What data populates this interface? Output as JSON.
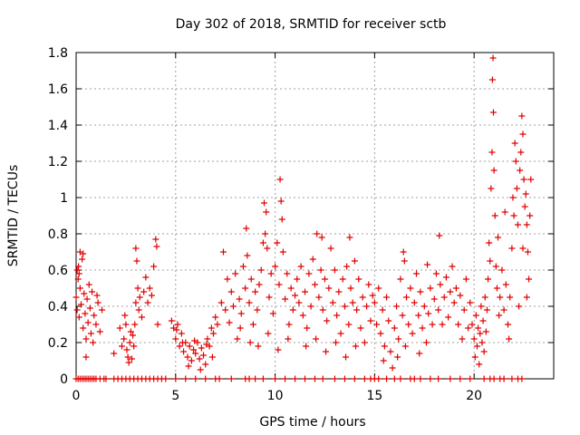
{
  "chart_data": {
    "type": "scatter",
    "title": "Day 302 of 2018, SRMTID for receiver sctb",
    "xlabel": "GPS time / hours",
    "ylabel": "SRMTID / TECUs",
    "xlim": [
      0,
      24
    ],
    "ylim": [
      0,
      1.8
    ],
    "xticks": [
      0,
      5,
      10,
      15,
      20
    ],
    "xtick_labels": [
      "0",
      "5",
      "10",
      "15",
      "20"
    ],
    "yticks": [
      0,
      0.2,
      0.4,
      0.6,
      0.8,
      1.0,
      1.2,
      1.4,
      1.6,
      1.8
    ],
    "ytick_labels": [
      "0",
      "0.2",
      "0.4",
      "0.6",
      "0.8",
      "1",
      "1.2",
      "1.4",
      "1.6",
      "1.8"
    ],
    "grid": true,
    "marker": "+",
    "color": "#e00000",
    "series": [
      {
        "name": "SRMTID",
        "points": [
          [
            0.0,
            0.45
          ],
          [
            0.05,
            0.38
          ],
          [
            0.1,
            0.55
          ],
          [
            0.12,
            0.62
          ],
          [
            0.15,
            0.34
          ],
          [
            0.2,
            0.5
          ],
          [
            0.25,
            0.41
          ],
          [
            0.3,
            0.66
          ],
          [
            0.35,
            0.28
          ],
          [
            0.4,
            0.47
          ],
          [
            0.45,
            0.36
          ],
          [
            0.5,
            0.22
          ],
          [
            0.55,
            0.44
          ],
          [
            0.6,
            0.31
          ],
          [
            0.7,
            0.39
          ],
          [
            0.75,
            0.25
          ],
          [
            0.8,
            0.48
          ],
          [
            0.9,
            0.35
          ],
          [
            1.0,
            0.3
          ],
          [
            1.1,
            0.42
          ],
          [
            1.2,
            0.26
          ],
          [
            1.3,
            0.38
          ],
          [
            0.2,
            0.7
          ],
          [
            0.35,
            0.69
          ],
          [
            0.15,
            0.58
          ],
          [
            0.5,
            0.12
          ],
          [
            0.05,
            0.6
          ],
          [
            0.65,
            0.52
          ],
          [
            0.85,
            0.2
          ],
          [
            1.05,
            0.46
          ],
          [
            1.9,
            0.14
          ],
          [
            2.2,
            0.28
          ],
          [
            2.3,
            0.18
          ],
          [
            2.4,
            0.22
          ],
          [
            2.5,
            0.3
          ],
          [
            2.55,
            0.16
          ],
          [
            2.6,
            0.12
          ],
          [
            2.7,
            0.2
          ],
          [
            2.75,
            0.26
          ],
          [
            2.8,
            0.11
          ],
          [
            2.85,
            0.24
          ],
          [
            2.9,
            0.18
          ],
          [
            2.95,
            0.3
          ],
          [
            3.0,
            0.42
          ],
          [
            3.05,
            0.65
          ],
          [
            3.1,
            0.5
          ],
          [
            3.15,
            0.38
          ],
          [
            3.2,
            0.45
          ],
          [
            3.3,
            0.34
          ],
          [
            3.4,
            0.48
          ],
          [
            3.5,
            0.56
          ],
          [
            3.6,
            0.42
          ],
          [
            3.7,
            0.5
          ],
          [
            3.8,
            0.46
          ],
          [
            3.9,
            0.62
          ],
          [
            4.0,
            0.77
          ],
          [
            4.05,
            0.73
          ],
          [
            4.1,
            0.3
          ],
          [
            3.0,
            0.72
          ],
          [
            2.45,
            0.35
          ],
          [
            2.65,
            0.09
          ],
          [
            4.8,
            0.32
          ],
          [
            4.9,
            0.28
          ],
          [
            5.0,
            0.22
          ],
          [
            5.1,
            0.3
          ],
          [
            5.2,
            0.18
          ],
          [
            5.3,
            0.25
          ],
          [
            5.4,
            0.15
          ],
          [
            5.5,
            0.2
          ],
          [
            5.6,
            0.12
          ],
          [
            5.7,
            0.18
          ],
          [
            5.8,
            0.1
          ],
          [
            5.9,
            0.16
          ],
          [
            6.0,
            0.14
          ],
          [
            6.1,
            0.2
          ],
          [
            6.2,
            0.11
          ],
          [
            6.3,
            0.17
          ],
          [
            6.4,
            0.13
          ],
          [
            6.5,
            0.08
          ],
          [
            6.6,
            0.22
          ],
          [
            6.7,
            0.18
          ],
          [
            6.8,
            0.28
          ],
          [
            6.9,
            0.25
          ],
          [
            7.0,
            0.34
          ],
          [
            7.1,
            0.3
          ],
          [
            5.05,
            0.27
          ],
          [
            5.35,
            0.2
          ],
          [
            5.65,
            0.07
          ],
          [
            5.95,
            0.21
          ],
          [
            6.25,
            0.05
          ],
          [
            6.55,
            0.19
          ],
          [
            6.85,
            0.12
          ],
          [
            7.3,
            0.42
          ],
          [
            7.4,
            0.7
          ],
          [
            7.5,
            0.38
          ],
          [
            7.6,
            0.55
          ],
          [
            7.7,
            0.31
          ],
          [
            7.8,
            0.48
          ],
          [
            7.9,
            0.4
          ],
          [
            8.0,
            0.58
          ],
          [
            8.1,
            0.22
          ],
          [
            8.2,
            0.44
          ],
          [
            8.3,
            0.36
          ],
          [
            8.4,
            0.62
          ],
          [
            8.5,
            0.5
          ],
          [
            8.55,
            0.83
          ],
          [
            8.6,
            0.68
          ],
          [
            8.7,
            0.42
          ],
          [
            8.8,
            0.55
          ],
          [
            8.9,
            0.3
          ],
          [
            9.0,
            0.48
          ],
          [
            9.1,
            0.38
          ],
          [
            9.2,
            0.52
          ],
          [
            9.3,
            0.6
          ],
          [
            9.4,
            0.75
          ],
          [
            9.45,
            0.97
          ],
          [
            9.5,
            0.8
          ],
          [
            9.55,
            0.92
          ],
          [
            9.6,
            0.72
          ],
          [
            9.7,
            0.45
          ],
          [
            9.8,
            0.58
          ],
          [
            9.9,
            0.36
          ],
          [
            10.0,
            0.62
          ],
          [
            10.1,
            0.75
          ],
          [
            10.2,
            0.52
          ],
          [
            10.25,
            1.1
          ],
          [
            10.3,
            0.98
          ],
          [
            10.35,
            0.88
          ],
          [
            10.4,
            0.7
          ],
          [
            10.5,
            0.44
          ],
          [
            10.6,
            0.58
          ],
          [
            10.7,
            0.3
          ],
          [
            10.8,
            0.5
          ],
          [
            10.9,
            0.38
          ],
          [
            11.0,
            0.46
          ],
          [
            8.25,
            0.28
          ],
          [
            8.75,
            0.2
          ],
          [
            9.15,
            0.18
          ],
          [
            9.65,
            0.25
          ],
          [
            10.15,
            0.16
          ],
          [
            10.65,
            0.22
          ],
          [
            11.1,
            0.55
          ],
          [
            11.2,
            0.42
          ],
          [
            11.3,
            0.62
          ],
          [
            11.4,
            0.35
          ],
          [
            11.5,
            0.48
          ],
          [
            11.6,
            0.28
          ],
          [
            11.7,
            0.58
          ],
          [
            11.8,
            0.4
          ],
          [
            11.9,
            0.66
          ],
          [
            12.0,
            0.52
          ],
          [
            12.1,
            0.8
          ],
          [
            12.2,
            0.45
          ],
          [
            12.3,
            0.6
          ],
          [
            12.4,
            0.38
          ],
          [
            12.5,
            0.55
          ],
          [
            12.6,
            0.32
          ],
          [
            12.7,
            0.5
          ],
          [
            12.8,
            0.72
          ],
          [
            12.9,
            0.42
          ],
          [
            13.0,
            0.6
          ],
          [
            13.1,
            0.35
          ],
          [
            13.2,
            0.48
          ],
          [
            13.3,
            0.25
          ],
          [
            13.4,
            0.55
          ],
          [
            13.5,
            0.4
          ],
          [
            13.6,
            0.62
          ],
          [
            13.7,
            0.3
          ],
          [
            13.8,
            0.5
          ],
          [
            13.9,
            0.42
          ],
          [
            14.0,
            0.65
          ],
          [
            14.1,
            0.38
          ],
          [
            14.2,
            0.55
          ],
          [
            14.3,
            0.28
          ],
          [
            14.4,
            0.45
          ],
          [
            14.5,
            0.2
          ],
          [
            14.6,
            0.4
          ],
          [
            14.7,
            0.52
          ],
          [
            14.8,
            0.32
          ],
          [
            14.9,
            0.46
          ],
          [
            11.55,
            0.18
          ],
          [
            12.05,
            0.22
          ],
          [
            12.55,
            0.15
          ],
          [
            13.05,
            0.2
          ],
          [
            13.55,
            0.12
          ],
          [
            14.05,
            0.18
          ],
          [
            13.75,
            0.78
          ],
          [
            12.35,
            0.78
          ],
          [
            15.0,
            0.42
          ],
          [
            15.1,
            0.3
          ],
          [
            15.2,
            0.5
          ],
          [
            15.3,
            0.25
          ],
          [
            15.4,
            0.38
          ],
          [
            15.5,
            0.18
          ],
          [
            15.6,
            0.45
          ],
          [
            15.7,
            0.32
          ],
          [
            15.8,
            0.15
          ],
          [
            15.9,
            0.06
          ],
          [
            16.0,
            0.28
          ],
          [
            16.1,
            0.4
          ],
          [
            16.2,
            0.22
          ],
          [
            16.3,
            0.55
          ],
          [
            16.4,
            0.35
          ],
          [
            16.5,
            0.65
          ],
          [
            16.6,
            0.45
          ],
          [
            16.7,
            0.3
          ],
          [
            16.8,
            0.5
          ],
          [
            16.9,
            0.25
          ],
          [
            17.0,
            0.42
          ],
          [
            17.1,
            0.58
          ],
          [
            17.2,
            0.35
          ],
          [
            17.3,
            0.48
          ],
          [
            17.4,
            0.28
          ],
          [
            17.5,
            0.4
          ],
          [
            17.6,
            0.2
          ],
          [
            17.7,
            0.36
          ],
          [
            17.8,
            0.5
          ],
          [
            17.9,
            0.3
          ],
          [
            18.0,
            0.44
          ],
          [
            18.1,
            0.58
          ],
          [
            18.2,
            0.38
          ],
          [
            18.3,
            0.52
          ],
          [
            18.4,
            0.3
          ],
          [
            18.5,
            0.45
          ],
          [
            18.6,
            0.56
          ],
          [
            18.7,
            0.34
          ],
          [
            18.8,
            0.48
          ],
          [
            18.9,
            0.62
          ],
          [
            19.0,
            0.42
          ],
          [
            19.1,
            0.5
          ],
          [
            19.2,
            0.3
          ],
          [
            19.3,
            0.46
          ],
          [
            19.4,
            0.22
          ],
          [
            19.5,
            0.38
          ],
          [
            19.6,
            0.55
          ],
          [
            19.7,
            0.28
          ],
          [
            19.8,
            0.42
          ],
          [
            15.45,
            0.1
          ],
          [
            16.15,
            0.12
          ],
          [
            16.55,
            0.18
          ],
          [
            17.25,
            0.14
          ],
          [
            18.25,
            0.79
          ],
          [
            17.65,
            0.63
          ],
          [
            16.45,
            0.7
          ],
          [
            19.9,
            0.3
          ],
          [
            20.0,
            0.22
          ],
          [
            20.05,
            0.12
          ],
          [
            20.1,
            0.35
          ],
          [
            20.15,
            0.18
          ],
          [
            20.2,
            0.28
          ],
          [
            20.25,
            0.08
          ],
          [
            20.3,
            0.25
          ],
          [
            20.35,
            0.4
          ],
          [
            20.4,
            0.2
          ],
          [
            20.45,
            0.32
          ],
          [
            20.5,
            0.15
          ],
          [
            20.55,
            0.45
          ],
          [
            20.6,
            0.26
          ],
          [
            20.65,
            0.38
          ],
          [
            20.7,
            0.55
          ],
          [
            20.75,
            0.75
          ],
          [
            20.8,
            0.65
          ],
          [
            20.85,
            1.05
          ],
          [
            20.9,
            1.25
          ],
          [
            20.92,
            1.65
          ],
          [
            20.95,
            1.77
          ],
          [
            20.97,
            1.47
          ],
          [
            21.0,
            1.15
          ],
          [
            21.05,
            0.9
          ],
          [
            21.1,
            0.62
          ],
          [
            21.15,
            0.5
          ],
          [
            21.2,
            0.78
          ],
          [
            21.3,
            0.45
          ],
          [
            21.4,
            0.6
          ],
          [
            21.5,
            0.38
          ],
          [
            21.6,
            0.52
          ],
          [
            21.7,
            0.3
          ],
          [
            21.8,
            0.45
          ],
          [
            21.9,
            0.72
          ],
          [
            22.0,
            0.9
          ],
          [
            22.05,
            1.3
          ],
          [
            22.1,
            1.2
          ],
          [
            22.15,
            1.05
          ],
          [
            22.2,
            0.85
          ],
          [
            22.3,
            1.15
          ],
          [
            22.35,
            1.25
          ],
          [
            22.4,
            1.45
          ],
          [
            22.45,
            1.35
          ],
          [
            22.5,
            1.1
          ],
          [
            22.55,
            0.95
          ],
          [
            22.6,
            1.02
          ],
          [
            22.65,
            0.85
          ],
          [
            22.7,
            0.7
          ],
          [
            22.75,
            0.55
          ],
          [
            22.8,
            0.9
          ],
          [
            22.85,
            1.1
          ],
          [
            21.25,
            0.35
          ],
          [
            21.75,
            0.22
          ],
          [
            22.25,
            0.4
          ],
          [
            22.65,
            0.45
          ],
          [
            21.55,
            0.92
          ],
          [
            21.95,
            1.0
          ],
          [
            22.45,
            0.72
          ]
        ]
      }
    ],
    "zero_hours": [
      0.0,
      0.1,
      0.2,
      0.3,
      0.4,
      0.5,
      0.6,
      0.7,
      0.8,
      0.9,
      1.0,
      1.2,
      1.4,
      1.5,
      1.9,
      2.1,
      2.3,
      2.5,
      2.7,
      2.9,
      3.1,
      3.3,
      3.5,
      3.7,
      3.9,
      4.1,
      4.3,
      4.5,
      5.0,
      5.5,
      6.0,
      6.5,
      7.0,
      7.2,
      7.8,
      8.5,
      8.7,
      9.0,
      9.4,
      10.0,
      10.5,
      11.0,
      11.5,
      12.0,
      12.4,
      13.0,
      13.5,
      14.0,
      14.5,
      14.8,
      15.0,
      15.2,
      15.6,
      16.0,
      16.3,
      16.8,
      17.0,
      17.3,
      17.8,
      18.2,
      18.8,
      19.3,
      19.8,
      20.5,
      20.8,
      21.0,
      21.3,
      21.5,
      21.9,
      22.2,
      22.4
    ]
  }
}
